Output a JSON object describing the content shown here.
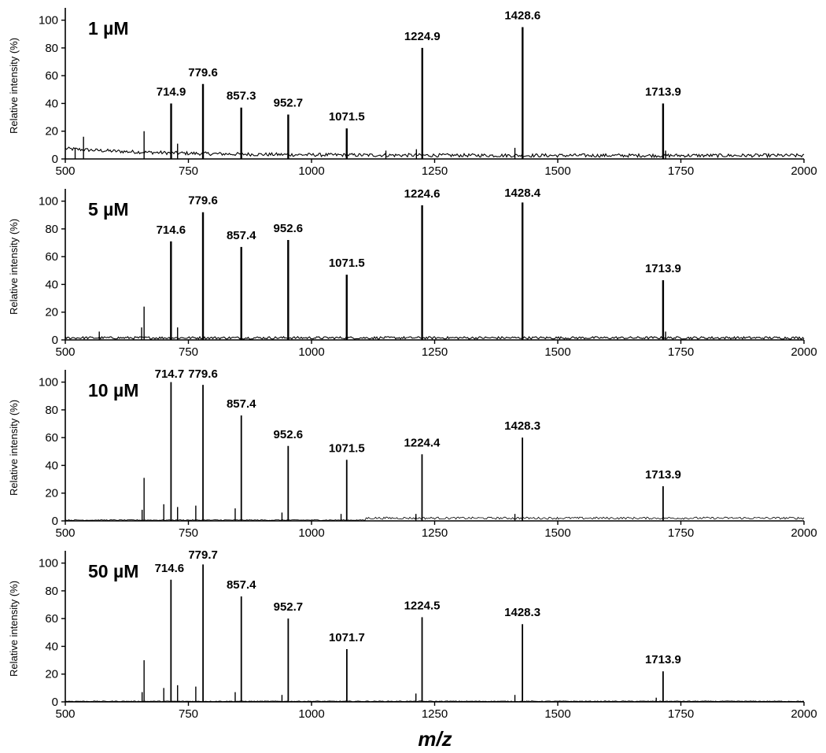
{
  "chart_data": {
    "type": "line",
    "xlabel": "m/z",
    "ylabel": "Relative intensity (%)",
    "xlim": [
      500,
      2000
    ],
    "ylim": [
      0,
      110
    ],
    "xticks": [
      500,
      750,
      1000,
      1250,
      1500,
      1750,
      2000
    ],
    "yticks": [
      0,
      20,
      40,
      60,
      80,
      100
    ],
    "panels": [
      {
        "label": "1 µM",
        "peaks": [
          {
            "x": 714.9,
            "y": 40,
            "label": "714.9"
          },
          {
            "x": 779.6,
            "y": 54,
            "label": "779.6"
          },
          {
            "x": 857.3,
            "y": 37,
            "label": "857.3"
          },
          {
            "x": 952.7,
            "y": 32,
            "label": "952.7"
          },
          {
            "x": 1071.5,
            "y": 22,
            "label": "1071.5"
          },
          {
            "x": 1224.9,
            "y": 80,
            "label": "1224.9"
          },
          {
            "x": 1428.6,
            "y": 95,
            "label": "1428.6"
          },
          {
            "x": 1713.9,
            "y": 40,
            "label": "1713.9"
          }
        ],
        "minor_peaks": [
          {
            "x": 537,
            "y": 16
          },
          {
            "x": 520,
            "y": 8
          },
          {
            "x": 660,
            "y": 20
          },
          {
            "x": 728,
            "y": 11
          },
          {
            "x": 1151,
            "y": 6
          },
          {
            "x": 1213,
            "y": 7
          },
          {
            "x": 1413,
            "y": 8
          },
          {
            "x": 1719,
            "y": 6
          }
        ]
      },
      {
        "label": "5 µM",
        "peaks": [
          {
            "x": 714.6,
            "y": 71,
            "label": "714.6"
          },
          {
            "x": 779.6,
            "y": 92,
            "label": "779.6"
          },
          {
            "x": 857.4,
            "y": 67,
            "label": "857.4"
          },
          {
            "x": 952.6,
            "y": 72,
            "label": "952.6"
          },
          {
            "x": 1071.5,
            "y": 47,
            "label": "1071.5"
          },
          {
            "x": 1224.6,
            "y": 97,
            "label": "1224.6"
          },
          {
            "x": 1428.4,
            "y": 99,
            "label": "1428.4"
          },
          {
            "x": 1713.9,
            "y": 43,
            "label": "1713.9"
          }
        ],
        "minor_peaks": [
          {
            "x": 660,
            "y": 24
          },
          {
            "x": 655,
            "y": 9
          },
          {
            "x": 728,
            "y": 9
          },
          {
            "x": 569,
            "y": 6
          },
          {
            "x": 1719,
            "y": 6
          }
        ]
      },
      {
        "label": "10 µM",
        "peaks": [
          {
            "x": 714.7,
            "y": 100,
            "label": "714.7"
          },
          {
            "x": 779.6,
            "y": 98,
            "label": "779.6"
          },
          {
            "x": 857.4,
            "y": 76,
            "label": "857.4"
          },
          {
            "x": 952.6,
            "y": 54,
            "label": "952.6"
          },
          {
            "x": 1071.5,
            "y": 44,
            "label": "1071.5"
          },
          {
            "x": 1224.4,
            "y": 48,
            "label": "1224.4"
          },
          {
            "x": 1428.3,
            "y": 60,
            "label": "1428.3"
          },
          {
            "x": 1713.9,
            "y": 25,
            "label": "1713.9"
          }
        ],
        "minor_peaks": [
          {
            "x": 660,
            "y": 31
          },
          {
            "x": 656,
            "y": 8
          },
          {
            "x": 700,
            "y": 12
          },
          {
            "x": 728,
            "y": 10
          },
          {
            "x": 765,
            "y": 11
          },
          {
            "x": 845,
            "y": 9
          },
          {
            "x": 940,
            "y": 6
          },
          {
            "x": 1060,
            "y": 5
          },
          {
            "x": 1212,
            "y": 5
          },
          {
            "x": 1413,
            "y": 5
          }
        ]
      },
      {
        "label": "50 µM",
        "peaks": [
          {
            "x": 714.6,
            "y": 88,
            "label": "714.6"
          },
          {
            "x": 779.7,
            "y": 99,
            "label": "779.7"
          },
          {
            "x": 857.4,
            "y": 76,
            "label": "857.4"
          },
          {
            "x": 952.7,
            "y": 60,
            "label": "952.7"
          },
          {
            "x": 1071.7,
            "y": 38,
            "label": "1071.7"
          },
          {
            "x": 1224.5,
            "y": 61,
            "label": "1224.5"
          },
          {
            "x": 1428.3,
            "y": 56,
            "label": "1428.3"
          },
          {
            "x": 1713.9,
            "y": 22,
            "label": "1713.9"
          }
        ],
        "minor_peaks": [
          {
            "x": 660,
            "y": 30
          },
          {
            "x": 656,
            "y": 7
          },
          {
            "x": 700,
            "y": 10
          },
          {
            "x": 728,
            "y": 12
          },
          {
            "x": 765,
            "y": 11
          },
          {
            "x": 845,
            "y": 7
          },
          {
            "x": 940,
            "y": 5
          },
          {
            "x": 1212,
            "y": 6
          },
          {
            "x": 1413,
            "y": 5
          },
          {
            "x": 1700,
            "y": 3
          }
        ]
      }
    ]
  }
}
